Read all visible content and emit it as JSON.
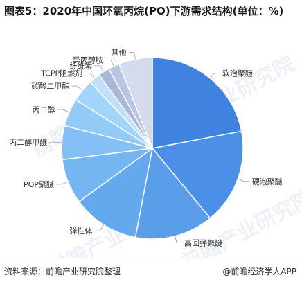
{
  "title": "图表5：2020年中国环氧丙烷(PO)下游需求结构(单位：%)",
  "source": "资料来源：前瞻产业研究院整理",
  "brand": "@前瞻经济学人APP",
  "watermark": "前瞻产业研究院",
  "chart_data": {
    "type": "pie",
    "title": "图表5：2020年中国环氧丙烷(PO)下游需求结构(单位：%)",
    "categories": [
      "软泡聚醚",
      "硬泡聚醚",
      "高回弹聚醚",
      "弹性体",
      "POP聚醚",
      "丙二醇甲醚",
      "丙二醇",
      "碳酸二甲酯",
      "TCPP阻燃剂",
      "纤维素",
      "异丙醇胺",
      "其他"
    ],
    "values": [
      22,
      17,
      14,
      12,
      8,
      6,
      5,
      4,
      2,
      2,
      2,
      6
    ],
    "colors": [
      "#3f82e0",
      "#4b90e6",
      "#5a9eea",
      "#64a9ee",
      "#74b5f2",
      "#84c0f5",
      "#93cbf7",
      "#a3d4f9",
      "#bfe0f9",
      "#a9b8d8",
      "#b8c6e2",
      "#d4dbec"
    ],
    "legend": "none"
  }
}
